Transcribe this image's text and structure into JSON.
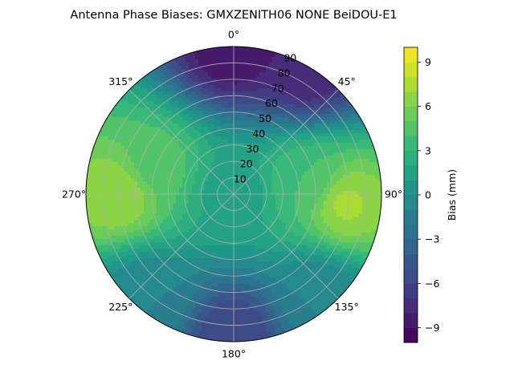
{
  "chart_data": {
    "type": "polar-contour",
    "title": "Antenna Phase Biases: GMXZENITH06      NONE BeiDOU-E1",
    "angular_tick_labels": [
      "0°",
      "45°",
      "90°",
      "135°",
      "180°",
      "225°",
      "270°",
      "315°"
    ],
    "angular_tick_degrees": [
      0,
      45,
      90,
      135,
      180,
      225,
      270,
      315
    ],
    "radial_tick_labels": [
      "10",
      "20",
      "30",
      "40",
      "50",
      "60",
      "70",
      "80",
      "90"
    ],
    "radial_tick_values": [
      10,
      20,
      30,
      40,
      50,
      60,
      70,
      80,
      90
    ],
    "radial_range": [
      0,
      90
    ],
    "grid": true,
    "colorbar": {
      "label": "Bias (mm)",
      "range": [
        -10,
        10
      ],
      "ticks": [
        -9,
        -6,
        -3,
        0,
        3,
        6,
        9
      ],
      "tick_labels": [
        "−9",
        "−6",
        "−3",
        "0",
        "3",
        "6",
        "9"
      ],
      "levels": 20,
      "colormap": "viridis"
    },
    "field_features": [
      {
        "azimuth_deg": 0,
        "zenith_deg": 0,
        "bias_mm": 1.5
      },
      {
        "azimuth_deg": 270,
        "zenith_deg": 70,
        "bias_mm": 7.0
      },
      {
        "azimuth_deg": 95,
        "zenith_deg": 68,
        "bias_mm": 7.2
      },
      {
        "azimuth_deg": 0,
        "zenith_deg": 88,
        "bias_mm": -9.0
      },
      {
        "azimuth_deg": 30,
        "zenith_deg": 88,
        "bias_mm": -8.0
      },
      {
        "azimuth_deg": 180,
        "zenith_deg": 85,
        "bias_mm": -6.0
      },
      {
        "azimuth_deg": 290,
        "zenith_deg": 50,
        "bias_mm": 4.5
      },
      {
        "azimuth_deg": 80,
        "zenith_deg": 45,
        "bias_mm": 4.0
      },
      {
        "azimuth_deg": 220,
        "zenith_deg": 80,
        "bias_mm": -1.0
      },
      {
        "azimuth_deg": 140,
        "zenith_deg": 80,
        "bias_mm": -1.0
      }
    ]
  }
}
